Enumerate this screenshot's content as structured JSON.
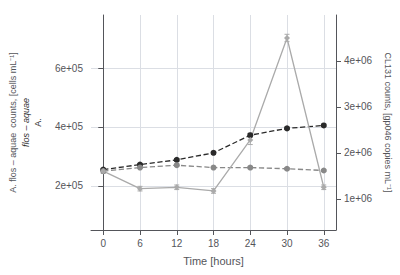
{
  "chart_data": {
    "type": "line",
    "x_label": "Time [hours]",
    "y_label": "A. flos – aquae  counts, [cells mL⁻¹]",
    "y2_label": "CL131 counts, [gp046 copies mL⁻¹]",
    "annotations": [
      "A.",
      "flos – aquae"
    ],
    "x": [
      0,
      6,
      12,
      18,
      24,
      30,
      36
    ],
    "xlim": [
      -2,
      38
    ],
    "xticks": [
      0,
      6,
      12,
      18,
      24,
      30,
      36
    ],
    "ylim": [
      50000,
      780000
    ],
    "yticks": [
      {
        "value": 200000,
        "label": "2e+05"
      },
      {
        "value": 400000,
        "label": "4e+05"
      },
      {
        "value": 600000,
        "label": "6e+05"
      }
    ],
    "y2lim": [
      320000,
      5000000
    ],
    "y2ticks": [
      {
        "value": 1000000,
        "label": "1e+06"
      },
      {
        "value": 2000000,
        "label": "2e+06"
      },
      {
        "value": 3000000,
        "label": "3e+06"
      },
      {
        "value": 4000000,
        "label": "4e+06"
      }
    ],
    "grid": true,
    "series": [
      {
        "color": "#2a2a2a",
        "marker": "circle",
        "line_style": "dashed",
        "values": [
          255000,
          272000,
          288000,
          312000,
          372000,
          395000,
          405000
        ],
        "errors": [
          3000,
          3000,
          4000,
          5000,
          6000,
          4000,
          4000
        ]
      },
      {
        "color": "#888888",
        "marker": "circle",
        "line_style": "dashed",
        "values": [
          250000,
          262000,
          270000,
          262000,
          262000,
          258000,
          252000
        ],
        "errors": [
          3000,
          3000,
          3000,
          4000,
          4000,
          3000,
          3000
        ]
      },
      {
        "color": "#aaaaaa",
        "marker": "diamond",
        "line_style": "solid",
        "axis": "y2",
        "values": [
          1600000,
          1220000,
          1250000,
          1170000,
          2280000,
          4500000,
          1250000
        ],
        "errors": [
          50000,
          50000,
          50000,
          50000,
          100000,
          80000,
          50000
        ]
      }
    ]
  }
}
